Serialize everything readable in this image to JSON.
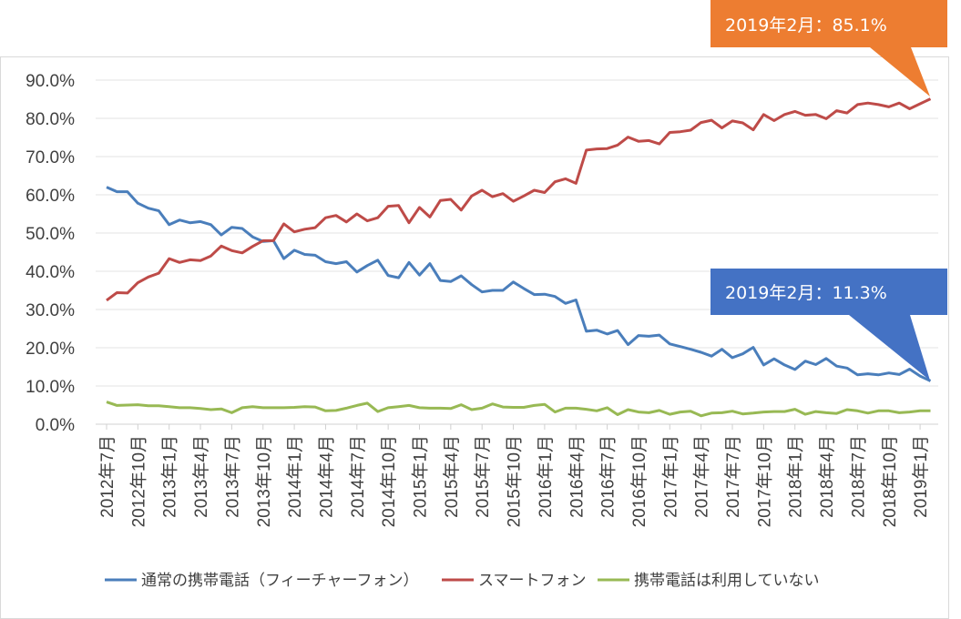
{
  "chart_data": {
    "type": "line",
    "title": "",
    "xlabel": "",
    "ylabel": "",
    "ylim": [
      0,
      90
    ],
    "y_ticks": [
      "0.0%",
      "10.0%",
      "20.0%",
      "30.0%",
      "40.0%",
      "50.0%",
      "60.0%",
      "70.0%",
      "80.0%",
      "90.0%"
    ],
    "grid": true,
    "legend_position": "bottom",
    "x": [
      "2012年7月",
      "2012年8月",
      "2012年9月",
      "2012年10月",
      "2012年11月",
      "2012年12月",
      "2013年1月",
      "2013年2月",
      "2013年3月",
      "2013年4月",
      "2013年5月",
      "2013年6月",
      "2013年7月",
      "2013年8月",
      "2013年9月",
      "2013年10月",
      "2013年11月",
      "2013年12月",
      "2014年1月",
      "2014年2月",
      "2014年3月",
      "2014年4月",
      "2014年5月",
      "2014年6月",
      "2014年7月",
      "2014年8月",
      "2014年9月",
      "2014年10月",
      "2014年11月",
      "2014年12月",
      "2015年1月",
      "2015年2月",
      "2015年3月",
      "2015年4月",
      "2015年5月",
      "2015年6月",
      "2015年7月",
      "2015年8月",
      "2015年9月",
      "2015年10月",
      "2015年11月",
      "2015年12月",
      "2016年1月",
      "2016年2月",
      "2016年3月",
      "2016年4月",
      "2016年5月",
      "2016年6月",
      "2016年7月",
      "2016年8月",
      "2016年9月",
      "2016年10月",
      "2016年11月",
      "2016年12月",
      "2017年1月",
      "2017年2月",
      "2017年3月",
      "2017年4月",
      "2017年5月",
      "2017年6月",
      "2017年7月",
      "2017年8月",
      "2017年9月",
      "2017年10月",
      "2017年11月",
      "2017年12月",
      "2018年1月",
      "2018年2月",
      "2018年3月",
      "2018年4月",
      "2018年5月",
      "2018年6月",
      "2018年7月",
      "2018年8月",
      "2018年9月",
      "2018年10月",
      "2018年11月",
      "2018年12月",
      "2019年1月",
      "2019年2月"
    ],
    "x_ticks": [
      "2012年7月",
      "2012年10月",
      "2013年1月",
      "2013年4月",
      "2013年7月",
      "2013年10月",
      "2014年1月",
      "2014年4月",
      "2014年7月",
      "2014年10月",
      "2015年1月",
      "2015年4月",
      "2015年7月",
      "2015年10月",
      "2016年1月",
      "2016年4月",
      "2016年7月",
      "2016年10月",
      "2017年1月",
      "2017年4月",
      "2017年7月",
      "2017年10月",
      "2018年1月",
      "2018年4月",
      "2018年7月",
      "2018年10月",
      "2019年1月"
    ],
    "series": [
      {
        "name": "通常の携帯電話（フィーチャーフォン）",
        "color": "#4a7ebb",
        "values": [
          62,
          60.8,
          60.8,
          57.8,
          56.5,
          55.8,
          52.2,
          53.4,
          52.7,
          53,
          52.2,
          49.5,
          51.5,
          51.2,
          49,
          47.8,
          48,
          43.3,
          45.5,
          44.4,
          44.2,
          42.5,
          42,
          42.5,
          39.8,
          41.5,
          42.9,
          38.9,
          38.3,
          42.3,
          39,
          42,
          37.6,
          37.3,
          38.8,
          36.5,
          34.6,
          35,
          35,
          37.2,
          35.5,
          33.9,
          34,
          33.4,
          31.6,
          32.5,
          24.3,
          24.6,
          23.6,
          24.5,
          20.8,
          23.2,
          23,
          23.3,
          21,
          20.3,
          19.6,
          18.8,
          17.8,
          19.6,
          17.4,
          18.4,
          20.1,
          15.5,
          17.1,
          15.5,
          14.3,
          16.5,
          15.6,
          17.2,
          15.2,
          14.7,
          12.9,
          13.2,
          12.9,
          13.4,
          13,
          14.4,
          12.6,
          11.3
        ]
      },
      {
        "name": "スマートフォン",
        "color": "#be4b48",
        "values": [
          32.4,
          34.4,
          34.3,
          37,
          38.5,
          39.5,
          43.3,
          42.3,
          43,
          42.8,
          44,
          46.6,
          45.4,
          44.8,
          46.5,
          48,
          48,
          52.4,
          50.3,
          51,
          51.4,
          54,
          54.6,
          52.9,
          55,
          53.2,
          54,
          57,
          57.2,
          52.7,
          56.7,
          54.2,
          58.5,
          58.8,
          56,
          59.7,
          61.2,
          59.5,
          60.3,
          58.3,
          59.7,
          61.2,
          60.6,
          63.4,
          64.2,
          63,
          71.7,
          72,
          72.1,
          73,
          75.1,
          74,
          74.2,
          73.3,
          76.3,
          76.5,
          76.9,
          78.9,
          79.5,
          77.5,
          79.3,
          78.8,
          77,
          81,
          79.4,
          81,
          81.8,
          80.8,
          81,
          79.9,
          82,
          81.4,
          83.6,
          84,
          83.6,
          83,
          84,
          82.5,
          83.8,
          85.1
        ]
      },
      {
        "name": "携帯電話は利用していない",
        "color": "#98b954",
        "values": [
          5.8,
          4.9,
          5,
          5.1,
          4.8,
          4.8,
          4.6,
          4.3,
          4.3,
          4.1,
          3.8,
          4,
          3,
          4.3,
          4.6,
          4.3,
          4.3,
          4.3,
          4.4,
          4.6,
          4.5,
          3.5,
          3.6,
          4.2,
          4.9,
          5.5,
          3.3,
          4.3,
          4.6,
          4.9,
          4.3,
          4.2,
          4.2,
          4.1,
          5.1,
          3.8,
          4.2,
          5.3,
          4.5,
          4.4,
          4.4,
          4.9,
          5.2,
          3.2,
          4.2,
          4.2,
          3.9,
          3.5,
          4.3,
          2.5,
          3.8,
          3.2,
          3,
          3.6,
          2.6,
          3.2,
          3.4,
          2.2,
          2.9,
          3,
          3.4,
          2.7,
          2.9,
          3.2,
          3.3,
          3.3,
          3.9,
          2.6,
          3.3,
          3,
          2.8,
          3.8,
          3.5,
          2.9,
          3.5,
          3.5,
          3,
          3.2,
          3.5,
          3.5
        ]
      }
    ],
    "annotations": [
      {
        "text": "2019年2月：85.1%",
        "color": "#ed7d31",
        "series": "スマートフォン"
      },
      {
        "text": "2019年2月：11.3%",
        "color": "#4472c4",
        "series": "通常の携帯電話（フィーチャーフォン）"
      }
    ]
  }
}
